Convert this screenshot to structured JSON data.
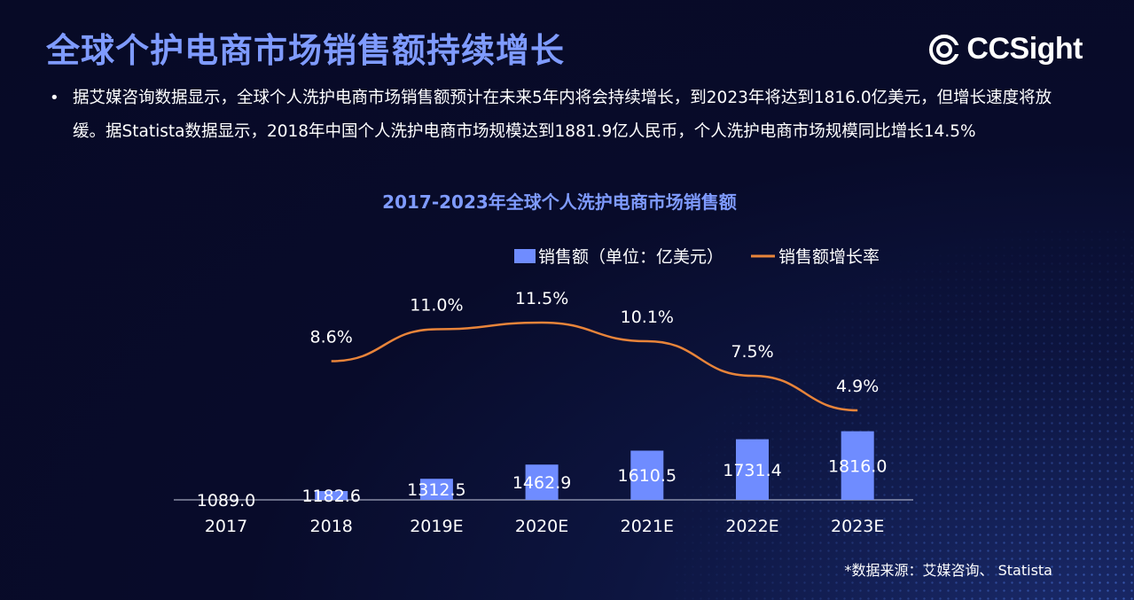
{
  "page": {
    "title": "全球个护电商市场销售额持续增长",
    "bullet": "据艾媒咨询数据显示，全球个人洗护电商市场销售额预计在未来5年内将会持续增长，到2023年将达到1816.0亿美元，但增长速度将放缓。据Statista数据显示，2018年中国个人洗护电商市场规模达到1881.9亿人民币，个人洗护电商市场规模同比增长14.5%",
    "source": "*数据来源：艾媒咨询、 Statista",
    "logo": "CCSight"
  },
  "colors": {
    "background": "#080b2a",
    "accent": "#7f9bff",
    "bar": "#6f8cff",
    "line": "#e8843a",
    "text": "#ffffff"
  },
  "chart_data": {
    "type": "bar",
    "title": "2017-2023年全球个人洗护电商市场销售额",
    "categories": [
      "2017",
      "2018",
      "2019E",
      "2020E",
      "2021E",
      "2022E",
      "2023E"
    ],
    "series": [
      {
        "name": "销售额（单位：亿美元）",
        "type": "bar",
        "values": [
          1089.0,
          1182.6,
          1312.5,
          1462.9,
          1610.5,
          1731.4,
          1816.0
        ],
        "labels": [
          "1089.0",
          "1182.6",
          "1312.5",
          "1462.9",
          "1610.5",
          "1731.4",
          "1816.0"
        ]
      },
      {
        "name": "销售额增长率",
        "type": "line",
        "values": [
          null,
          8.6,
          11.0,
          11.5,
          10.1,
          7.5,
          4.9
        ],
        "labels": [
          "",
          "8.6%",
          "11.0%",
          "11.5%",
          "10.1%",
          "7.5%",
          "4.9%"
        ]
      }
    ],
    "legend": "top-right",
    "grid": false
  }
}
